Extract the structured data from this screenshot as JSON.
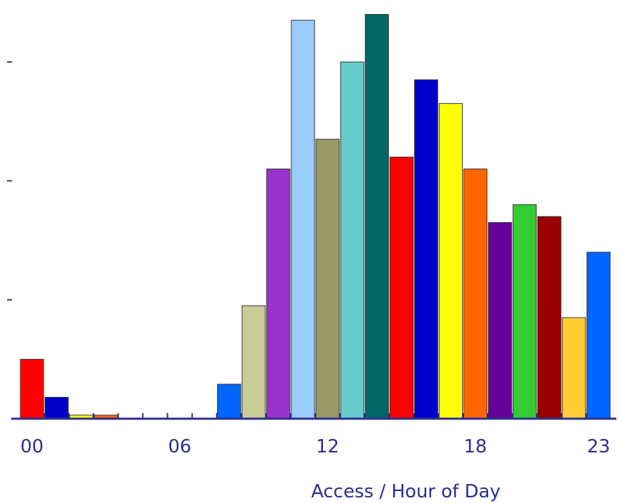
{
  "chart_data": {
    "type": "bar",
    "title": "",
    "xlabel": "Access / Hour of Day",
    "ylabel": "",
    "categories": [
      "00",
      "01",
      "02",
      "03",
      "04",
      "05",
      "06",
      "07",
      "08",
      "09",
      "10",
      "11",
      "12",
      "13",
      "14",
      "15",
      "16",
      "17",
      "18",
      "19",
      "20",
      "21",
      "22",
      "23"
    ],
    "x_tick_labels": [
      "00",
      "06",
      "12",
      "18",
      "23"
    ],
    "values": [
      100,
      36,
      6,
      6,
      0,
      0,
      0,
      0,
      58,
      190,
      420,
      670,
      470,
      600,
      680,
      440,
      570,
      530,
      420,
      330,
      360,
      340,
      170,
      280
    ],
    "ylim": [
      0,
      690
    ],
    "y_ticks": [
      200,
      400,
      600
    ],
    "y_tick_labels_shown": false,
    "grid": false,
    "legend": "none",
    "bar_colors": [
      "#ff0000",
      "#0000cc",
      "#ffff00",
      "#ff6600",
      "#ff6600",
      "#ff6600",
      "#ff6600",
      "#ff6600",
      "#0066ff",
      "#cccc99",
      "#9933cc",
      "#99ccff",
      "#999966",
      "#66cccc",
      "#006666",
      "#ff0000",
      "#0000cc",
      "#ffff00",
      "#ff6600",
      "#660099",
      "#33cc33",
      "#990000",
      "#ffcc33",
      "#0066ff"
    ],
    "axis_color": "#2b2f8f"
  }
}
